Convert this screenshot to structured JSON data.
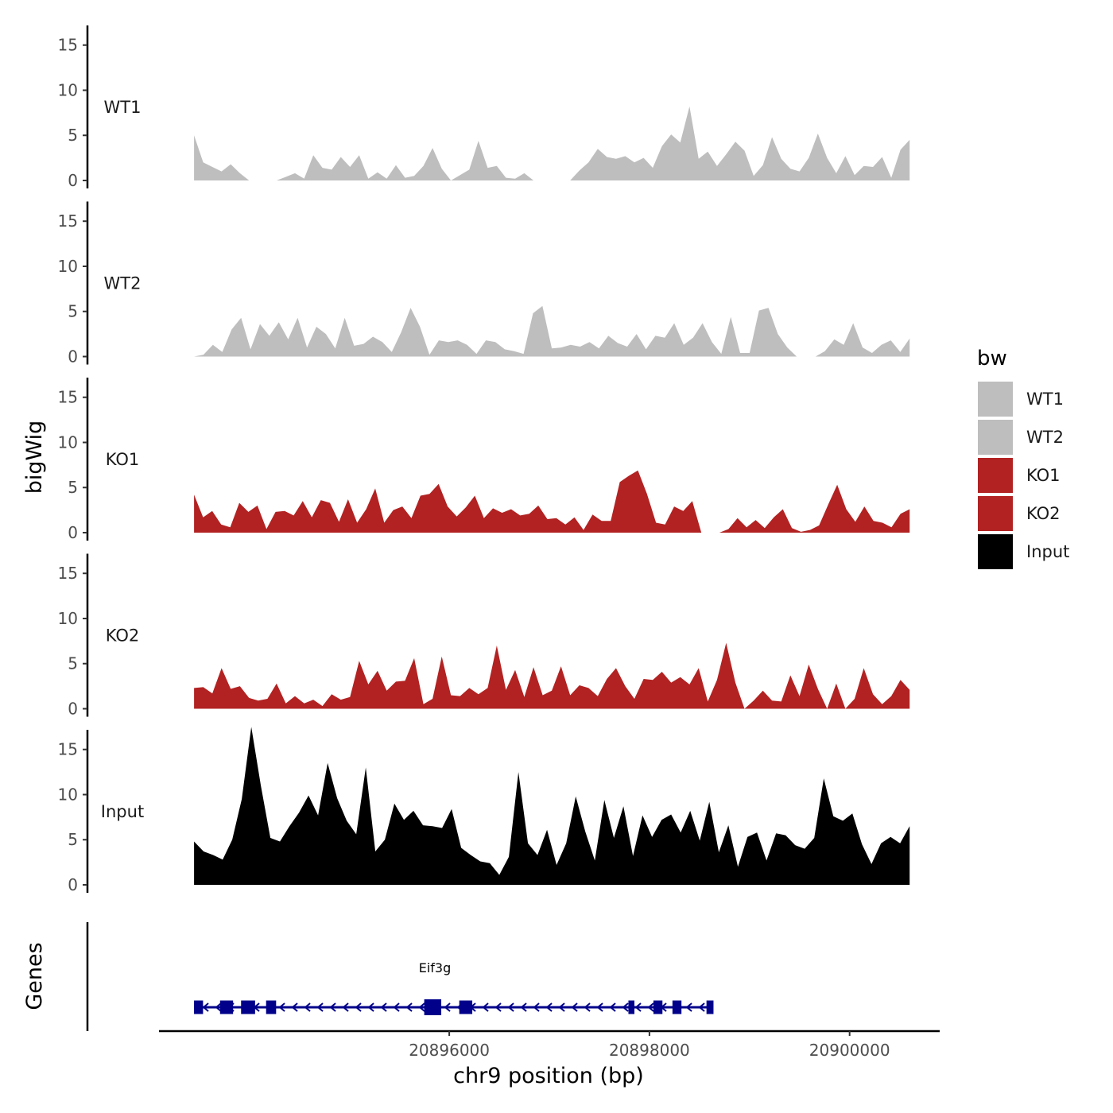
{
  "chart_data": {
    "type": "area",
    "x_axis": {
      "title": "chr9 position (bp)",
      "range": [
        20893100,
        20900900
      ],
      "data_range": [
        20893450,
        20900600
      ],
      "ticks": [
        20896000,
        20898000,
        20900000
      ],
      "tick_labels": [
        "20896000",
        "20898000",
        "20900000"
      ]
    },
    "y_axis": {
      "title": "bigWig",
      "range": [
        0,
        18.5
      ],
      "ticks": [
        0,
        5,
        10,
        15
      ],
      "tick_labels": [
        "0",
        "5",
        "10",
        "15"
      ]
    },
    "legend": {
      "title": "bw",
      "position": "right",
      "entries": [
        {
          "label": "WT1",
          "color": "#bebebe"
        },
        {
          "label": "WT2",
          "color": "#bebebe"
        },
        {
          "label": "KO1",
          "color": "#b22222"
        },
        {
          "label": "KO2",
          "color": "#b22222"
        },
        {
          "label": "Input",
          "color": "#000000"
        }
      ]
    },
    "series": [
      {
        "name": "WT1",
        "color": "#bebebe",
        "values": [
          5,
          2,
          1.5,
          1,
          1.8,
          0.8,
          0,
          0,
          0,
          0,
          0.4,
          0.8,
          0.2,
          2.8,
          1.4,
          1.2,
          2.6,
          1.5,
          2.8,
          0.2,
          0.9,
          0.2,
          1.7,
          0.3,
          0.5,
          1.6,
          3.6,
          1.3,
          0,
          0.6,
          1.2,
          4.4,
          1.4,
          1.6,
          0.3,
          0.2,
          0.8,
          0,
          0,
          0,
          0,
          0,
          1.1,
          2,
          3.5,
          2.6,
          2.4,
          2.7,
          2,
          2.5,
          1.4,
          3.8,
          5.1,
          4.2,
          8.2,
          2.4,
          3.2,
          1.6,
          2.9,
          4.3,
          3.3,
          0.5,
          1.7,
          4.8,
          2.4,
          1.3,
          1,
          2.5,
          5.2,
          2.5,
          0.8,
          2.7,
          0.6,
          1.6,
          1.5,
          2.6,
          0.3,
          3.4,
          4.5
        ]
      },
      {
        "name": "WT2",
        "color": "#bebebe",
        "values": [
          0,
          0.2,
          1.3,
          0.5,
          3,
          4.3,
          0.8,
          3.6,
          2.3,
          3.8,
          1.9,
          4.3,
          1,
          3.3,
          2.5,
          0.9,
          4.3,
          1.2,
          1.4,
          2.2,
          1.6,
          0.5,
          2.7,
          5.4,
          3.3,
          0.2,
          1.8,
          1.6,
          1.8,
          1.3,
          0.3,
          1.8,
          1.6,
          0.8,
          0.6,
          0.3,
          4.8,
          5.6,
          0.9,
          1,
          1.3,
          1.1,
          1.6,
          0.9,
          2.3,
          1.5,
          1.1,
          2.5,
          0.8,
          2.3,
          2.1,
          3.7,
          1.3,
          2.1,
          3.7,
          1.6,
          0.3,
          4.4,
          0.4,
          0.4,
          5.1,
          5.4,
          2.5,
          1,
          0,
          0,
          0,
          0.6,
          1.9,
          1.3,
          3.7,
          1,
          0.4,
          1.3,
          1.8,
          0.5,
          2
        ]
      },
      {
        "name": "KO1",
        "color": "#b22222",
        "values": [
          4.2,
          1.7,
          2.4,
          0.9,
          0.6,
          3.3,
          2.3,
          3,
          0.4,
          2.3,
          2.4,
          1.9,
          3.5,
          1.7,
          3.6,
          3.3,
          1.2,
          3.7,
          1.1,
          2.6,
          4.9,
          1.1,
          2.5,
          2.9,
          1.6,
          4.1,
          4.3,
          5.4,
          2.9,
          1.8,
          2.8,
          4.1,
          1.6,
          2.7,
          2.2,
          2.6,
          1.9,
          2.1,
          3,
          1.5,
          1.6,
          0.9,
          1.7,
          0.3,
          2,
          1.3,
          1.3,
          5.6,
          6.3,
          6.9,
          4.3,
          1.1,
          0.9,
          2.9,
          2.4,
          3.5,
          0,
          0,
          0,
          0.4,
          1.6,
          0.6,
          1.4,
          0.5,
          1.7,
          2.6,
          0.5,
          0.1,
          0.3,
          0.8,
          3.1,
          5.3,
          2.6,
          1.2,
          2.9,
          1.3,
          1.1,
          0.6,
          2.1,
          2.6
        ]
      },
      {
        "name": "KO2",
        "color": "#b22222",
        "values": [
          2.3,
          2.4,
          1.7,
          4.5,
          2.2,
          2.5,
          1.2,
          0.9,
          1.1,
          2.8,
          0.6,
          1.4,
          0.6,
          1,
          0.3,
          1.6,
          1,
          1.3,
          5.3,
          2.7,
          4.2,
          2,
          3,
          3.1,
          5.6,
          0.5,
          1.1,
          5.8,
          1.5,
          1.4,
          2.3,
          1.6,
          2.3,
          7,
          2.1,
          4.3,
          1.3,
          4.6,
          1.5,
          2,
          4.7,
          1.5,
          2.6,
          2.3,
          1.4,
          3.3,
          4.5,
          2.5,
          1.1,
          3.3,
          3.2,
          4.1,
          2.9,
          3.5,
          2.7,
          4.5,
          0.8,
          3.2,
          7.3,
          2.9,
          0,
          0.9,
          2,
          0.9,
          0.8,
          3.7,
          1.4,
          4.9,
          2.2,
          0,
          2.8,
          0,
          1.1,
          4.5,
          1.6,
          0.5,
          1.4,
          3.2,
          2.1
        ]
      },
      {
        "name": "Input",
        "color": "#000000",
        "values": [
          4.8,
          3.7,
          3.3,
          2.8,
          5,
          9.5,
          17.5,
          11,
          5.2,
          4.8,
          6.5,
          8,
          9.9,
          7.7,
          13.5,
          9.6,
          7.1,
          5.6,
          13,
          3.7,
          5,
          9,
          7.2,
          8.2,
          6.6,
          6.5,
          6.3,
          8.4,
          4.1,
          3.3,
          2.6,
          2.4,
          1.1,
          3.1,
          12.5,
          4.6,
          3.3,
          6.1,
          2.2,
          4.6,
          9.8,
          5.9,
          2.7,
          9.4,
          5.2,
          8.7,
          3.2,
          7.7,
          5.3,
          7.2,
          7.8,
          5.8,
          8.2,
          4.9,
          9.2,
          3.6,
          6.6,
          2,
          5.3,
          5.8,
          2.7,
          5.7,
          5.5,
          4.4,
          4,
          5.2,
          11.8,
          7.6,
          7.1,
          7.9,
          4.5,
          2.3,
          4.6,
          5.3,
          4.6,
          6.5
        ]
      }
    ],
    "tracks": [
      "WT1",
      "WT2",
      "KO1",
      "KO2",
      "Input"
    ],
    "gene_track": {
      "title": "Genes",
      "gene_name": "Eif3g",
      "strand": "-",
      "color": "#00008b",
      "start": 20893450,
      "end": 20898580,
      "exons": [
        [
          20893450,
          20893540
        ],
        [
          20893710,
          20893840
        ],
        [
          20893920,
          20894060
        ],
        [
          20894170,
          20894270
        ],
        [
          20895750,
          20895920
        ],
        [
          20896100,
          20896230
        ],
        [
          20897790,
          20897850
        ],
        [
          20898040,
          20898130
        ],
        [
          20898230,
          20898320
        ],
        [
          20898570,
          20898640
        ]
      ],
      "big_exons": [
        [
          20895750,
          20895920
        ]
      ]
    }
  }
}
